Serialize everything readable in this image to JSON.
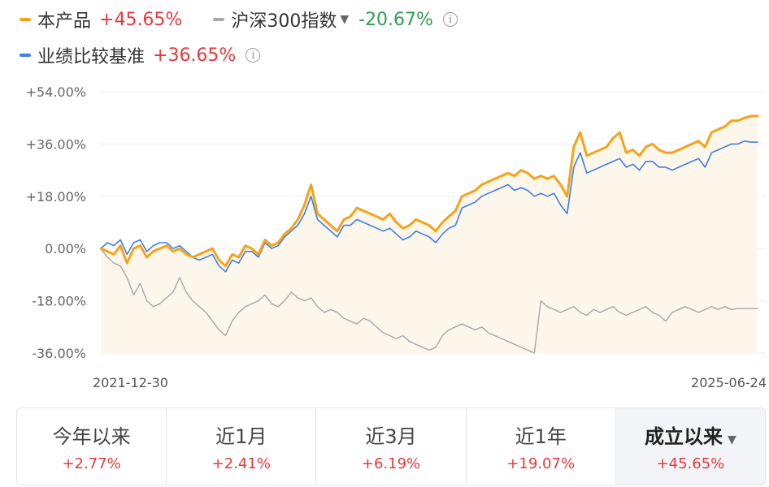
{
  "legend": {
    "product": {
      "label": "本产品",
      "value": "+45.65%",
      "color": "#f5a31a"
    },
    "index": {
      "label": "沪深300指数",
      "value": "-20.67%",
      "color": "#a8a8a8",
      "caret": "▼",
      "info": "i"
    },
    "benchmark": {
      "label": "业绩比较基准",
      "value": "+36.65%",
      "color": "#3e7fe8",
      "info": "i"
    }
  },
  "tabs": [
    {
      "label": "今年以来",
      "value": "+2.77%"
    },
    {
      "label": "近1月",
      "value": "+2.41%"
    },
    {
      "label": "近3月",
      "value": "+6.19%"
    },
    {
      "label": "近1年",
      "value": "+19.07%"
    },
    {
      "label": "成立以来",
      "value": "+45.65%",
      "active": true,
      "caret": "▼"
    }
  ],
  "chart_data": {
    "type": "line",
    "x_start": "2021-12-30",
    "x_end": "2025-06-24",
    "x_tick_labels": [
      "2021-12-30",
      "2025-06-24"
    ],
    "y_tick_labels": [
      "+54.00%",
      "+36.00%",
      "+18.00%",
      "0.00%",
      "-18.00%",
      "-36.00%"
    ],
    "ylim": [
      -36,
      54
    ],
    "grid": true,
    "area_fill": "#fdf6ea",
    "series": [
      {
        "name": "本产品",
        "color": "#f5a31a",
        "x": [
          0,
          0.01,
          0.02,
          0.03,
          0.04,
          0.05,
          0.06,
          0.07,
          0.08,
          0.09,
          0.1,
          0.11,
          0.12,
          0.13,
          0.14,
          0.15,
          0.16,
          0.17,
          0.18,
          0.19,
          0.2,
          0.21,
          0.22,
          0.23,
          0.24,
          0.25,
          0.26,
          0.27,
          0.28,
          0.29,
          0.3,
          0.31,
          0.32,
          0.33,
          0.34,
          0.35,
          0.36,
          0.37,
          0.38,
          0.39,
          0.4,
          0.41,
          0.42,
          0.43,
          0.44,
          0.45,
          0.46,
          0.47,
          0.48,
          0.49,
          0.5,
          0.51,
          0.52,
          0.53,
          0.54,
          0.55,
          0.56,
          0.57,
          0.58,
          0.59,
          0.6,
          0.61,
          0.62,
          0.63,
          0.64,
          0.65,
          0.66,
          0.67,
          0.68,
          0.69,
          0.7,
          0.71,
          0.72,
          0.73,
          0.74,
          0.75,
          0.76,
          0.77,
          0.78,
          0.79,
          0.8,
          0.81,
          0.82,
          0.83,
          0.84,
          0.85,
          0.86,
          0.87,
          0.88,
          0.89,
          0.9,
          0.91,
          0.92,
          0.93,
          0.94,
          0.95,
          0.96,
          0.97,
          0.98,
          0.99,
          1
        ],
        "values": [
          0,
          -1,
          -2,
          1,
          -5,
          0,
          1,
          -3,
          -1,
          0,
          1,
          -1,
          0,
          -2,
          -3,
          -2,
          -1,
          0,
          -4,
          -6,
          -2,
          -3,
          1,
          0,
          -2,
          3,
          1,
          2,
          5,
          7,
          10,
          15,
          22,
          12,
          10,
          8,
          6,
          10,
          11,
          14,
          13,
          12,
          11,
          10,
          12,
          9,
          7,
          8,
          10,
          9,
          8,
          6,
          9,
          11,
          13,
          18,
          19,
          20,
          22,
          23,
          24,
          25,
          26,
          25,
          27,
          26,
          24,
          25,
          24,
          25,
          22,
          18,
          35,
          40,
          32,
          33,
          34,
          35,
          38,
          40,
          33,
          34,
          32,
          35,
          36,
          34,
          33,
          33,
          34,
          35,
          36,
          37,
          35,
          40,
          41,
          42,
          44,
          44,
          45,
          45.65,
          45.65
        ]
      },
      {
        "name": "业绩比较基准",
        "color": "#3e7fe8",
        "x": [
          0,
          0.01,
          0.02,
          0.03,
          0.04,
          0.05,
          0.06,
          0.07,
          0.08,
          0.09,
          0.1,
          0.11,
          0.12,
          0.13,
          0.14,
          0.15,
          0.16,
          0.17,
          0.18,
          0.19,
          0.2,
          0.21,
          0.22,
          0.23,
          0.24,
          0.25,
          0.26,
          0.27,
          0.28,
          0.29,
          0.3,
          0.31,
          0.32,
          0.33,
          0.34,
          0.35,
          0.36,
          0.37,
          0.38,
          0.39,
          0.4,
          0.41,
          0.42,
          0.43,
          0.44,
          0.45,
          0.46,
          0.47,
          0.48,
          0.49,
          0.5,
          0.51,
          0.52,
          0.53,
          0.54,
          0.55,
          0.56,
          0.57,
          0.58,
          0.59,
          0.6,
          0.61,
          0.62,
          0.63,
          0.64,
          0.65,
          0.66,
          0.67,
          0.68,
          0.69,
          0.7,
          0.71,
          0.72,
          0.73,
          0.74,
          0.75,
          0.76,
          0.77,
          0.78,
          0.79,
          0.8,
          0.81,
          0.82,
          0.83,
          0.84,
          0.85,
          0.86,
          0.87,
          0.88,
          0.89,
          0.9,
          0.91,
          0.92,
          0.93,
          0.94,
          0.95,
          0.96,
          0.97,
          0.98,
          0.99,
          1
        ],
        "values": [
          0,
          2,
          1,
          3,
          -2,
          2,
          3,
          -1,
          1,
          2,
          2,
          0,
          1,
          -1,
          -3,
          -4,
          -3,
          -2,
          -6,
          -8,
          -4,
          -5,
          -1,
          -1,
          -3,
          2,
          0,
          1,
          4,
          6,
          8,
          12,
          18,
          10,
          8,
          6,
          4,
          8,
          8,
          10,
          9,
          8,
          7,
          6,
          7,
          5,
          3,
          4,
          6,
          5,
          4,
          2,
          5,
          7,
          8,
          14,
          15,
          16,
          18,
          19,
          20,
          21,
          22,
          20,
          21,
          20,
          18,
          19,
          18,
          19,
          15,
          12,
          28,
          33,
          26,
          27,
          28,
          29,
          30,
          31,
          28,
          29,
          27,
          30,
          30,
          28,
          28,
          27,
          28,
          29,
          30,
          31,
          28,
          33,
          34,
          35,
          36,
          36,
          37,
          36.65,
          36.65
        ]
      },
      {
        "name": "沪深300指数",
        "color": "#a8a8a8",
        "x": [
          0,
          0.01,
          0.02,
          0.03,
          0.04,
          0.05,
          0.06,
          0.07,
          0.08,
          0.09,
          0.1,
          0.11,
          0.12,
          0.13,
          0.14,
          0.15,
          0.16,
          0.17,
          0.18,
          0.19,
          0.2,
          0.21,
          0.22,
          0.23,
          0.24,
          0.25,
          0.26,
          0.27,
          0.28,
          0.29,
          0.3,
          0.31,
          0.32,
          0.33,
          0.34,
          0.35,
          0.36,
          0.37,
          0.38,
          0.39,
          0.4,
          0.41,
          0.42,
          0.43,
          0.44,
          0.45,
          0.46,
          0.47,
          0.48,
          0.49,
          0.5,
          0.51,
          0.52,
          0.53,
          0.54,
          0.55,
          0.56,
          0.57,
          0.58,
          0.59,
          0.6,
          0.61,
          0.62,
          0.63,
          0.64,
          0.65,
          0.66,
          0.67,
          0.68,
          0.69,
          0.7,
          0.71,
          0.72,
          0.73,
          0.74,
          0.75,
          0.76,
          0.77,
          0.78,
          0.79,
          0.8,
          0.81,
          0.82,
          0.83,
          0.84,
          0.85,
          0.86,
          0.87,
          0.88,
          0.89,
          0.9,
          0.91,
          0.92,
          0.93,
          0.94,
          0.95,
          0.96,
          0.97,
          0.98,
          0.99,
          1
        ],
        "values": [
          0,
          -3,
          -5,
          -6,
          -10,
          -16,
          -12,
          -18,
          -20,
          -19,
          -17,
          -15,
          -10,
          -15,
          -18,
          -20,
          -22,
          -25,
          -28,
          -30,
          -25,
          -22,
          -20,
          -19,
          -18,
          -16,
          -19,
          -20,
          -18,
          -15,
          -17,
          -18,
          -17,
          -20,
          -22,
          -21,
          -22,
          -24,
          -25,
          -26,
          -24,
          -25,
          -27,
          -29,
          -30,
          -31,
          -30,
          -32,
          -33,
          -34,
          -35,
          -34,
          -30,
          -28,
          -27,
          -26,
          -27,
          -28,
          -27,
          -29,
          -30,
          -31,
          -32,
          -33,
          -34,
          -35,
          -36,
          -18,
          -20,
          -21,
          -22,
          -21,
          -20,
          -22,
          -23,
          -21,
          -22,
          -21,
          -20,
          -22,
          -23,
          -22,
          -21,
          -20,
          -22,
          -23,
          -25,
          -22,
          -21,
          -20,
          -21,
          -22,
          -21,
          -20,
          -21,
          -20,
          -21,
          -20.67,
          -20.67,
          -20.67,
          -20.67
        ]
      }
    ]
  }
}
